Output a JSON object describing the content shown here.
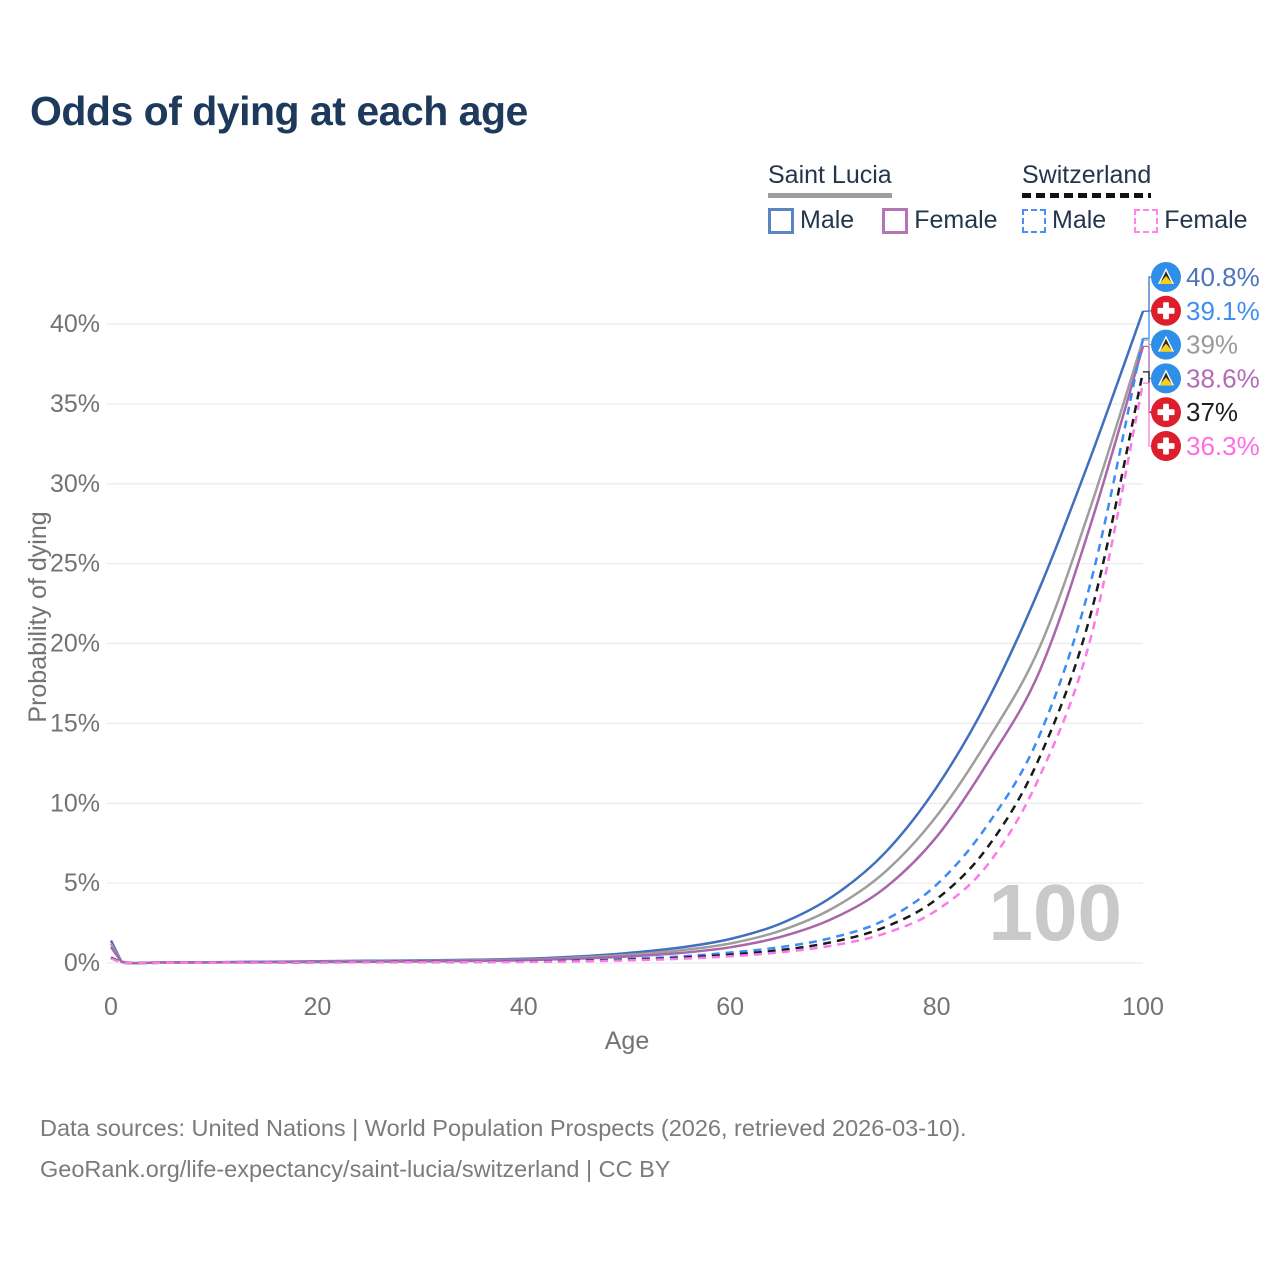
{
  "title": "Odds of dying at each age",
  "legend": {
    "groups": [
      {
        "name": "Saint Lucia",
        "line_style": "solid",
        "underline_color": "#9e9e9e",
        "items": [
          {
            "label": "Male",
            "color": "#5b84c4"
          },
          {
            "label": "Female",
            "color": "#b475b5"
          }
        ]
      },
      {
        "name": "Switzerland",
        "line_style": "dashed",
        "underline_color": "#111111",
        "items": [
          {
            "label": "Male",
            "color": "#4a90f2"
          },
          {
            "label": "Female",
            "color": "#ff85e8"
          }
        ]
      }
    ]
  },
  "chart_data": {
    "type": "line",
    "title": "Odds of dying at each age",
    "xlabel": "Age",
    "ylabel": "Probability of dying",
    "xlim": [
      0,
      100
    ],
    "ylim_percent": [
      0,
      43
    ],
    "x_ticks": [
      0,
      20,
      40,
      60,
      80,
      100
    ],
    "y_ticks": [
      "0%",
      "5%",
      "10%",
      "15%",
      "20%",
      "25%",
      "30%",
      "35%",
      "40%"
    ],
    "grid": "horizontal",
    "legend_position": "top-right",
    "watermark": "100",
    "x": [
      0,
      1,
      5,
      10,
      15,
      20,
      25,
      30,
      35,
      40,
      45,
      50,
      55,
      60,
      65,
      70,
      75,
      80,
      85,
      90,
      95,
      100
    ],
    "series": [
      {
        "name": "Saint Lucia Male",
        "country": "Saint Lucia",
        "sex": "Male",
        "color": "#3f6fbe",
        "dash": false,
        "icon": "saint-lucia-flag-icon",
        "label_color": "#4d74bd",
        "end_label": "40.8%",
        "values": [
          1.4,
          0.1,
          0.04,
          0.05,
          0.08,
          0.11,
          0.14,
          0.16,
          0.2,
          0.26,
          0.4,
          0.62,
          0.95,
          1.5,
          2.5,
          4.2,
          6.9,
          11.0,
          16.5,
          23.5,
          31.8,
          40.8
        ]
      },
      {
        "name": "Saint Lucia Both sexes",
        "country": "Saint Lucia",
        "sex": "Both",
        "color": "#9e9e9e",
        "dash": false,
        "icon": "saint-lucia-flag-icon",
        "label_color": "#9a9a9a",
        "end_label": "39%",
        "values": [
          1.2,
          0.09,
          0.04,
          0.04,
          0.06,
          0.09,
          0.11,
          0.13,
          0.16,
          0.21,
          0.33,
          0.51,
          0.78,
          1.22,
          2.05,
          3.45,
          5.7,
          9.2,
          14.0,
          19.8,
          28.7,
          39.0
        ]
      },
      {
        "name": "Saint Lucia Female",
        "country": "Saint Lucia",
        "sex": "Female",
        "color": "#aa66ab",
        "dash": false,
        "icon": "saint-lucia-flag-icon",
        "label_color": "#b16cb5",
        "end_label": "38.6%",
        "values": [
          1.0,
          0.08,
          0.03,
          0.04,
          0.05,
          0.06,
          0.08,
          0.1,
          0.13,
          0.17,
          0.27,
          0.41,
          0.62,
          0.98,
          1.65,
          2.8,
          4.7,
          7.9,
          12.6,
          18.3,
          27.6,
          38.6
        ]
      },
      {
        "name": "Switzerland Male",
        "country": "Switzerland",
        "sex": "Male",
        "color": "#3d8bf5",
        "dash": true,
        "icon": "switzerland-flag-icon",
        "label_color": "#3f8ef3",
        "end_label": "39.1%",
        "values": [
          0.35,
          0.03,
          0.01,
          0.01,
          0.03,
          0.05,
          0.06,
          0.07,
          0.08,
          0.1,
          0.15,
          0.25,
          0.4,
          0.65,
          1.0,
          1.6,
          2.7,
          4.9,
          8.7,
          14.3,
          24.0,
          39.1
        ]
      },
      {
        "name": "Switzerland Both sexes",
        "country": "Switzerland",
        "sex": "Both",
        "color": "#1a1a1a",
        "dash": true,
        "icon": "switzerland-flag-icon",
        "label_color": "#1f1f1f",
        "end_label": "37%",
        "values": [
          0.32,
          0.03,
          0.01,
          0.01,
          0.02,
          0.04,
          0.05,
          0.06,
          0.07,
          0.09,
          0.13,
          0.2,
          0.32,
          0.52,
          0.82,
          1.33,
          2.25,
          4.0,
          7.3,
          12.9,
          22.0,
          37.0
        ]
      },
      {
        "name": "Switzerland Female",
        "country": "Switzerland",
        "sex": "Female",
        "color": "#fb7ae7",
        "dash": true,
        "icon": "switzerland-flag-icon",
        "label_color": "#ff6ce4",
        "end_label": "36.3%",
        "values": [
          0.29,
          0.02,
          0.01,
          0.01,
          0.02,
          0.03,
          0.04,
          0.05,
          0.06,
          0.07,
          0.1,
          0.16,
          0.26,
          0.42,
          0.68,
          1.1,
          1.85,
          3.3,
          6.2,
          11.7,
          20.5,
          36.3
        ]
      }
    ]
  },
  "colors": {
    "title": "#1d3a5c",
    "axis_text": "#737373",
    "gridline": "#ebebeb",
    "watermark": "#c9c9c9",
    "saint_lucia_flag_bg": "#2f8fe8",
    "saint_lucia_flag_yellow": "#f7d117",
    "switzerland_flag_bg": "#dd1f2d"
  },
  "footer": {
    "line1": "Data sources: United Nations | World Population Prospects (2026, retrieved 2026-03-10).",
    "line2": "GeoRank.org/life-expectancy/saint-lucia/switzerland | CC BY"
  }
}
